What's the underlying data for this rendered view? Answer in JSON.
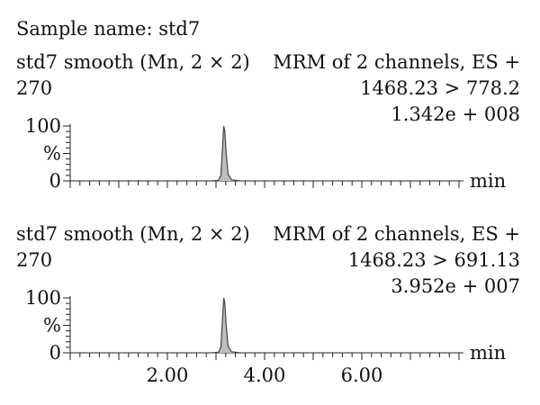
{
  "sample_name": "Sample name: std7",
  "chart_data": [
    {
      "type": "line",
      "header_left": "std7 smooth (Mn, 2 × 2)",
      "header_right": "MRM of 2 channels, ES +",
      "scan_label": "270",
      "transition": "1468.23 > 778.2",
      "intensity": "1.342e + 008",
      "xlabel": "min",
      "ylabel": "%",
      "y_ticks": [
        "100",
        "0"
      ],
      "xlim": [
        0,
        8
      ],
      "ylim": [
        0,
        100
      ],
      "x_ticks": [],
      "x": [
        2.9,
        3.05,
        3.1,
        3.13,
        3.16,
        3.18,
        3.21,
        3.25,
        3.32,
        3.5
      ],
      "y": [
        0,
        1,
        10,
        55,
        100,
        92,
        50,
        12,
        2,
        0
      ]
    },
    {
      "type": "line",
      "header_left": "std7 smooth (Mn, 2 × 2)",
      "header_right": "MRM of 2 channels, ES +",
      "scan_label": "270",
      "transition": "1468.23 > 691.13",
      "intensity": "3.952e + 007",
      "xlabel": "min",
      "ylabel": "%",
      "y_ticks": [
        "100",
        "0"
      ],
      "xlim": [
        0,
        8
      ],
      "ylim": [
        0,
        100
      ],
      "x_ticks": [
        "2.00",
        "4.00",
        "6.00"
      ],
      "x": [
        2.9,
        3.05,
        3.1,
        3.13,
        3.16,
        3.18,
        3.21,
        3.25,
        3.32,
        3.5
      ],
      "y": [
        0,
        1,
        10,
        55,
        100,
        92,
        50,
        12,
        2,
        0
      ]
    }
  ]
}
